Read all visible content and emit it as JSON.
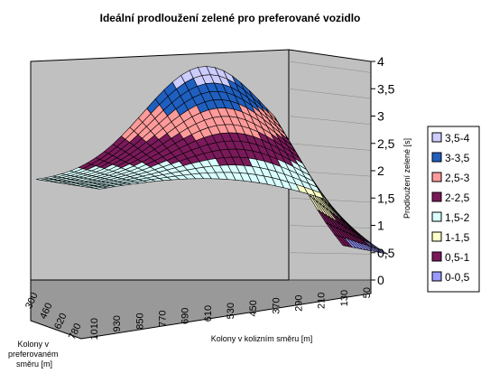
{
  "chart_data": {
    "type": "surface",
    "title": "Ideální prodloužení zelené pro preferované vozidlo",
    "zlabel": "Prodloužení zelené [s]",
    "xlabel": "Kolony v kolizním směru [m]",
    "ylabel": "Kolony v preferovaném směru [m]",
    "zlim": [
      0,
      4
    ],
    "z_ticks": [
      "0",
      "0,5",
      "1",
      "1,5",
      "2",
      "2,5",
      "3",
      "3,5",
      "4"
    ],
    "x_ticks": [
      "1010",
      "930",
      "850",
      "770",
      "690",
      "610",
      "530",
      "450",
      "370",
      "290",
      "210",
      "130",
      "50"
    ],
    "y_ticks": [
      "300",
      "460",
      "620",
      "780"
    ],
    "legend": [
      {
        "label": "3,5-4",
        "color": "#ccccff"
      },
      {
        "label": "3-3,5",
        "color": "#1f5fbf"
      },
      {
        "label": "2,5-3",
        "color": "#ff9a9a"
      },
      {
        "label": "2-2,5",
        "color": "#7a1a5a"
      },
      {
        "label": "1,5-2",
        "color": "#d9ffff"
      },
      {
        "label": "1-1,5",
        "color": "#ffffc8"
      },
      {
        "label": "0,5-1",
        "color": "#7a1a5a"
      },
      {
        "label": "0-0,5",
        "color": "#9999ff"
      }
    ],
    "legend_position": "right",
    "grid": true
  }
}
